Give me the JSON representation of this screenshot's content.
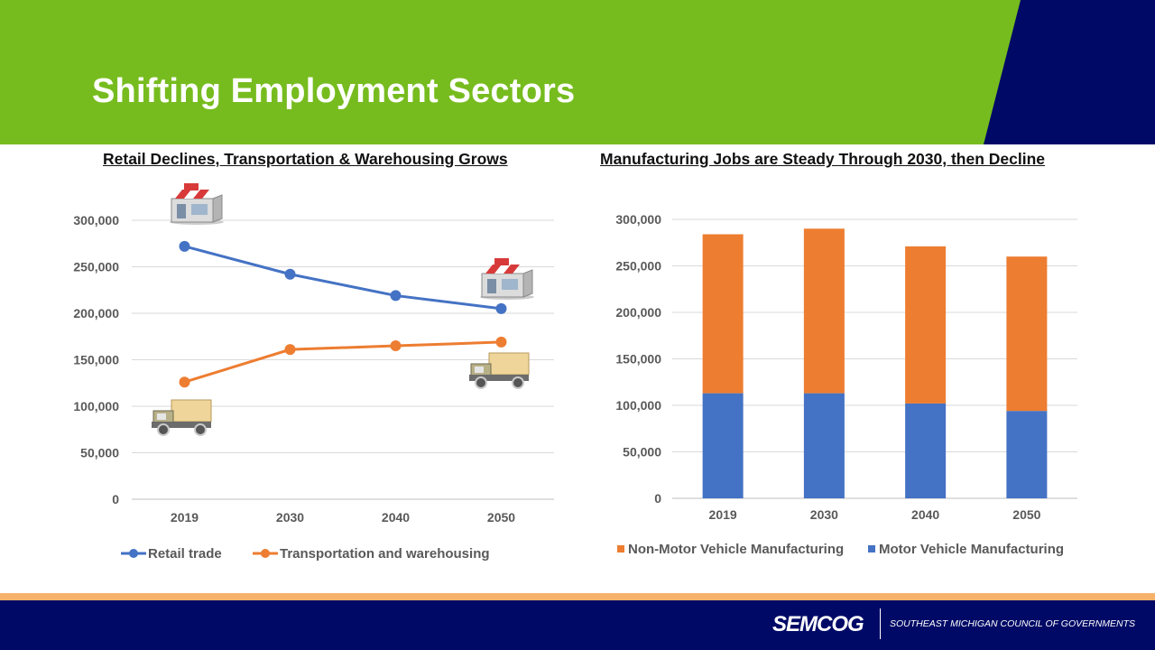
{
  "slide": {
    "title": "Shifting Employment Sectors"
  },
  "colors": {
    "header_green": "#77bc1f",
    "header_navy": "#000a66",
    "footer_navy": "#000a66",
    "footer_stripe": "#f6b26b",
    "series_blue": "#4472c4",
    "series_orange": "#ed7d31"
  },
  "footer": {
    "logo": "SEMCOG",
    "tagline": "SOUTHEAST MICHIGAN COUNCIL OF GOVERNMENTS"
  },
  "icons": [
    "store-icon",
    "store-icon",
    "truck-icon",
    "truck-icon"
  ],
  "chart_data": [
    {
      "type": "line",
      "title": "Retail Declines, Transportation & Warehousing Grows",
      "categories": [
        "2019",
        "2030",
        "2040",
        "2050"
      ],
      "series": [
        {
          "name": "Retail trade",
          "values": [
            272000,
            242000,
            219000,
            205000
          ]
        },
        {
          "name": "Transportation and warehousing",
          "values": [
            126000,
            161000,
            165000,
            169000
          ]
        }
      ],
      "ylim": [
        0,
        300000
      ],
      "yticks": [
        "0",
        "50,000",
        "100,000",
        "150,000",
        "200,000",
        "250,000",
        "300,000"
      ],
      "grid": true,
      "legend": "bottom"
    },
    {
      "type": "bar",
      "stacked": true,
      "title": "Manufacturing Jobs are Steady Through 2030, then Decline",
      "categories": [
        "2019",
        "2030",
        "2040",
        "2050"
      ],
      "series": [
        {
          "name": "Non-Motor Vehicle Manufacturing",
          "values": [
            171000,
            177000,
            169000,
            166000
          ]
        },
        {
          "name": "Motor Vehicle Manufacturing",
          "values": [
            113000,
            113000,
            102000,
            94000
          ]
        }
      ],
      "ylim": [
        0,
        300000
      ],
      "yticks": [
        "0",
        "50,000",
        "100,000",
        "150,000",
        "200,000",
        "250,000",
        "300,000"
      ],
      "grid": true,
      "legend": "bottom"
    }
  ]
}
